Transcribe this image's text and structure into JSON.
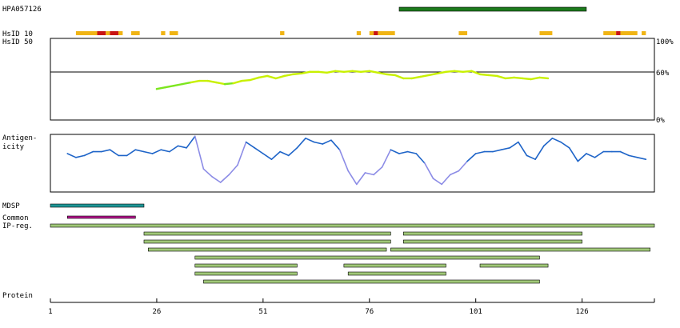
{
  "labels": {
    "antibody": "HPA057126",
    "hsid10": "HsID 10",
    "hsid50": "HsID 50",
    "antigenicity_line1": "Antigen-",
    "antigenicity_line2": "icity",
    "mdsp": "MDSP",
    "common": "Common",
    "ipreg": "IP-reg.",
    "protein": "Protein"
  },
  "colors": {
    "antibody_bar": "#1c7a1c",
    "hsid_orange": "#f0b414",
    "hsid_red": "#c81414",
    "identity_line": "#c8f000",
    "identity_line_low": "#7ce61e",
    "antigen_high": "#1e64c8",
    "antigen_low": "#8c8ce6",
    "mdsp": "#1e9696",
    "common": "#b4148c",
    "ipreg_fill": "#a0c878"
  },
  "chart_data": {
    "type": "line",
    "x_axis": {
      "label": "Protein",
      "range": [
        1,
        143
      ],
      "ticks": [
        "1",
        "26",
        "51",
        "76",
        "101",
        "126"
      ]
    },
    "identity_axis": {
      "ticks": [
        "100%",
        "60%",
        "0%"
      ],
      "reference_line": 60
    },
    "antibody_span": [
      83,
      127
    ],
    "hsid10_segments": [
      {
        "from": 7,
        "to": 12,
        "color": "orange"
      },
      {
        "from": 12,
        "to": 14,
        "color": "red"
      },
      {
        "from": 14,
        "to": 15,
        "color": "orange"
      },
      {
        "from": 15,
        "to": 17,
        "color": "red"
      },
      {
        "from": 17,
        "to": 18,
        "color": "orange"
      },
      {
        "from": 20,
        "to": 22,
        "color": "orange"
      },
      {
        "from": 27,
        "to": 28,
        "color": "orange"
      },
      {
        "from": 29,
        "to": 31,
        "color": "orange"
      },
      {
        "from": 55,
        "to": 56,
        "color": "orange"
      },
      {
        "from": 73,
        "to": 74,
        "color": "orange"
      },
      {
        "from": 76,
        "to": 77,
        "color": "orange"
      },
      {
        "from": 77,
        "to": 78,
        "color": "red"
      },
      {
        "from": 78,
        "to": 82,
        "color": "orange"
      },
      {
        "from": 97,
        "to": 99,
        "color": "orange"
      },
      {
        "from": 116,
        "to": 119,
        "color": "orange"
      },
      {
        "from": 131,
        "to": 134,
        "color": "orange"
      },
      {
        "from": 134,
        "to": 135,
        "color": "red"
      },
      {
        "from": 135,
        "to": 139,
        "color": "orange"
      },
      {
        "from": 140,
        "to": 141,
        "color": "orange"
      }
    ],
    "identity_series": {
      "name": "HsID 50",
      "x": [
        26,
        28,
        30,
        32,
        34,
        36,
        38,
        40,
        42,
        44,
        46,
        48,
        50,
        52,
        54,
        56,
        58,
        60,
        62,
        64,
        66,
        68,
        70,
        72,
        74,
        76,
        78,
        80,
        82,
        84,
        86,
        88,
        90,
        92,
        94,
        96,
        98,
        100,
        102,
        104,
        106,
        108,
        110,
        112,
        114,
        116,
        118
      ],
      "y": [
        38,
        40,
        42,
        44,
        46,
        48,
        48,
        46,
        44,
        45,
        48,
        49,
        52,
        54,
        51,
        54,
        56,
        57,
        59,
        59,
        58,
        60,
        59,
        60,
        59,
        60,
        58,
        56,
        55,
        51,
        51,
        53,
        55,
        57,
        59,
        60,
        59,
        60,
        56,
        55,
        54,
        51,
        52,
        51,
        50,
        52,
        51
      ]
    },
    "antigenicity_series": {
      "name": "Antigenicity",
      "x": [
        5,
        7,
        9,
        11,
        13,
        15,
        17,
        19,
        21,
        23,
        25,
        27,
        29,
        31,
        33,
        35,
        37,
        39,
        41,
        43,
        45,
        47,
        49,
        51,
        53,
        55,
        57,
        59,
        61,
        63,
        65,
        67,
        69,
        71,
        73,
        75,
        77,
        79,
        81,
        83,
        85,
        87,
        89,
        91,
        93,
        95,
        97,
        99,
        101,
        103,
        105,
        107,
        109,
        111,
        113,
        115,
        117,
        119,
        121,
        123,
        125,
        127,
        129,
        131,
        133,
        135,
        137,
        139,
        141
      ],
      "y": [
        0.5,
        0.3,
        0.4,
        0.6,
        0.6,
        0.7,
        0.4,
        0.4,
        0.7,
        0.6,
        0.5,
        0.7,
        0.6,
        0.9,
        0.8,
        1.4,
        -0.3,
        -0.7,
        -1.0,
        -0.6,
        -0.1,
        1.1,
        0.8,
        0.5,
        0.2,
        0.6,
        0.4,
        0.8,
        1.3,
        1.1,
        1.0,
        1.2,
        0.7,
        -0.4,
        -1.1,
        -0.5,
        -0.6,
        -0.2,
        0.7,
        0.5,
        0.6,
        0.5,
        0.0,
        -0.8,
        -1.1,
        -0.6,
        -0.4,
        0.1,
        0.5,
        0.6,
        0.6,
        0.7,
        0.8,
        1.1,
        0.4,
        0.2,
        0.9,
        1.3,
        1.1,
        0.8,
        0.1,
        0.5,
        0.3,
        0.6,
        0.6,
        0.6,
        0.4,
        0.3,
        0.2
      ],
      "low_threshold": 0.0
    },
    "mdsp": [
      [
        1,
        23
      ]
    ],
    "common": [
      [
        5,
        21
      ]
    ],
    "ipreg_rows": [
      [
        [
          1,
          143
        ]
      ],
      [
        [
          23,
          81
        ],
        [
          84,
          126
        ]
      ],
      [
        [
          23,
          81
        ],
        [
          84,
          126
        ]
      ],
      [
        [
          24,
          80
        ],
        [
          81,
          142
        ]
      ],
      [
        [
          35,
          116
        ]
      ],
      [
        [
          35,
          59
        ],
        [
          70,
          94
        ],
        [
          102,
          118
        ]
      ],
      [
        [
          35,
          59
        ],
        [
          71,
          94
        ]
      ],
      [
        [
          37,
          116
        ]
      ]
    ]
  }
}
